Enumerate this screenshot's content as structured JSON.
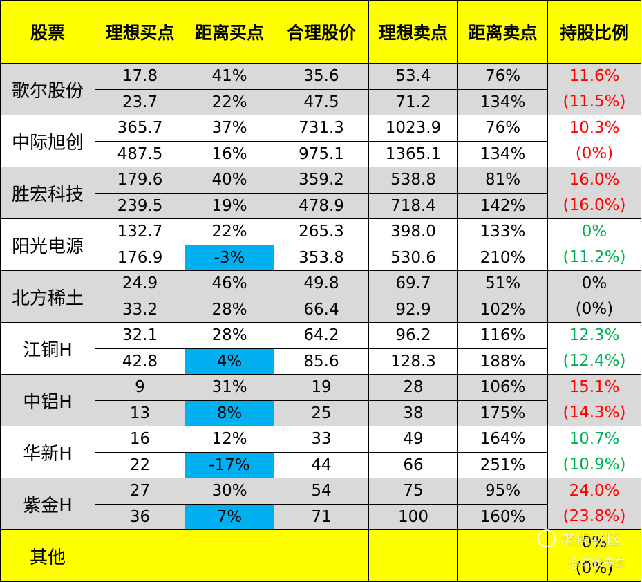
{
  "headers": [
    "股票",
    "理想买点",
    "距离买点",
    "合理股价",
    "理想卖点",
    "距离卖点",
    "持股比例"
  ],
  "stocks": [
    {
      "name": "歌尔股份",
      "bg": "gray",
      "rows": [
        [
          "17.8",
          "41%",
          "35.6",
          "53.4",
          "76%"
        ],
        [
          "23.7",
          "22%",
          "47.5",
          "71.2",
          "134%"
        ]
      ],
      "hold": [
        "11.6%",
        "(11.5%)"
      ],
      "hold_color": "#ff0000"
    },
    {
      "name": "中际旭创",
      "bg": "white",
      "rows": [
        [
          "365.7",
          "37%",
          "731.3",
          "1023.9",
          "76%"
        ],
        [
          "487.5",
          "16%",
          "975.1",
          "1365.1",
          "134%"
        ]
      ],
      "hold": [
        "10.3%",
        "(0%)"
      ],
      "hold_color": "#ff0000"
    },
    {
      "name": "胜宏科技",
      "bg": "gray",
      "rows": [
        [
          "179.6",
          "40%",
          "359.2",
          "538.8",
          "81%"
        ],
        [
          "239.5",
          "19%",
          "478.9",
          "718.4",
          "142%"
        ]
      ],
      "hold": [
        "16.0%",
        "(16.0%)"
      ],
      "hold_color": "#ff0000"
    },
    {
      "name": "阳光电源",
      "bg": "white",
      "rows": [
        [
          "132.7",
          "22%",
          "265.3",
          "398.0",
          "133%"
        ],
        [
          "176.9",
          "-3%",
          "353.8",
          "530.6",
          "210%"
        ]
      ],
      "hold": [
        "0%",
        "(11.2%)"
      ],
      "hold_color": "#00b050"
    },
    {
      "name": "北方稀土",
      "bg": "gray",
      "rows": [
        [
          "24.9",
          "46%",
          "49.8",
          "69.7",
          "51%"
        ],
        [
          "33.2",
          "28%",
          "66.4",
          "92.9",
          "102%"
        ]
      ],
      "hold": [
        "0%",
        "(0%)"
      ],
      "hold_color": "#000000"
    },
    {
      "name": "江铜H",
      "bg": "white",
      "rows": [
        [
          "32.1",
          "28%",
          "64.2",
          "96.2",
          "116%"
        ],
        [
          "42.8",
          "4%",
          "85.6",
          "128.3",
          "188%"
        ]
      ],
      "hold": [
        "12.3%",
        "(12.4%)"
      ],
      "hold_color": "#00b050"
    },
    {
      "name": "中铝H",
      "bg": "gray",
      "rows": [
        [
          "9",
          "31%",
          "19",
          "28",
          "106%"
        ],
        [
          "13",
          "8%",
          "25",
          "38",
          "175%"
        ]
      ],
      "hold": [
        "15.1%",
        "(14.3%)"
      ],
      "hold_color": "#ff0000"
    },
    {
      "name": "华新H",
      "bg": "white",
      "rows": [
        [
          "16",
          "12%",
          "33",
          "49",
          "164%"
        ],
        [
          "22",
          "-17%",
          "44",
          "66",
          "251%"
        ]
      ],
      "hold": [
        "10.7%",
        "(10.9%)"
      ],
      "hold_color": "#00b050"
    },
    {
      "name": "紫金H",
      "bg": "gray",
      "rows": [
        [
          "27",
          "30%",
          "54",
          "75",
          "95%"
        ],
        [
          "36",
          "7%",
          "71",
          "100",
          "160%"
        ]
      ],
      "hold": [
        "24.0%",
        "(23.8%)"
      ],
      "hold_color": "#ff0000"
    }
  ],
  "other": {
    "name": "其他",
    "hold": [
      "0%",
      "(0%)"
    ]
  },
  "colors": {
    "header_bg": "#ffff00",
    "gray_bg": "#d9d9d9",
    "highlight": "#00b0f0",
    "red": "#ff0000",
    "green": "#00b050"
  },
  "watermark": {
    "title": "老虎社区",
    "sub": "@成长先生"
  }
}
